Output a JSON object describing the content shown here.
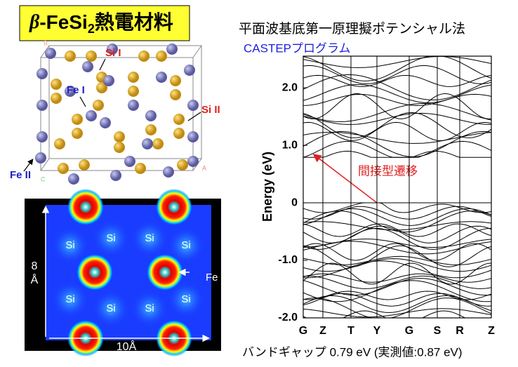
{
  "title": {
    "symbol": "β",
    "formula": "-FeSi",
    "subscript": "2",
    "rest": "熱電材料"
  },
  "method": "平面波基底第一原理擬ポテンシャル法",
  "program": "CASTEPプログラム",
  "crystal": {
    "labels": [
      "Si I",
      "Fe I",
      "Si II",
      "Fe II"
    ],
    "axes": [
      "B",
      "A",
      "C"
    ]
  },
  "density_map": {
    "si_labels": [
      "Si",
      "Si",
      "Si",
      "Si",
      "Si",
      "Si",
      "Si",
      "Si"
    ],
    "fe_label": "Fe",
    "height_label": [
      "8",
      "Å"
    ],
    "width_label": "10Å"
  },
  "band_plot": {
    "ylabel": "Energy  (eV)",
    "ylim": [
      -2,
      2.55
    ],
    "yticks": [
      {
        "value": -2,
        "label": "-2.0"
      },
      {
        "value": -1,
        "label": "-1.0"
      },
      0,
      {
        "value": 1,
        "label": "1.0"
      },
      {
        "value": 2,
        "label": "2.0"
      }
    ],
    "kpoints": [
      "G",
      "Z",
      "T",
      "Y",
      "G",
      "S",
      "R",
      "Z"
    ],
    "annotation": "間接型遷移"
  },
  "caption": "バンドギャップ  0.79 eV  (実測値:0.87 eV)"
}
